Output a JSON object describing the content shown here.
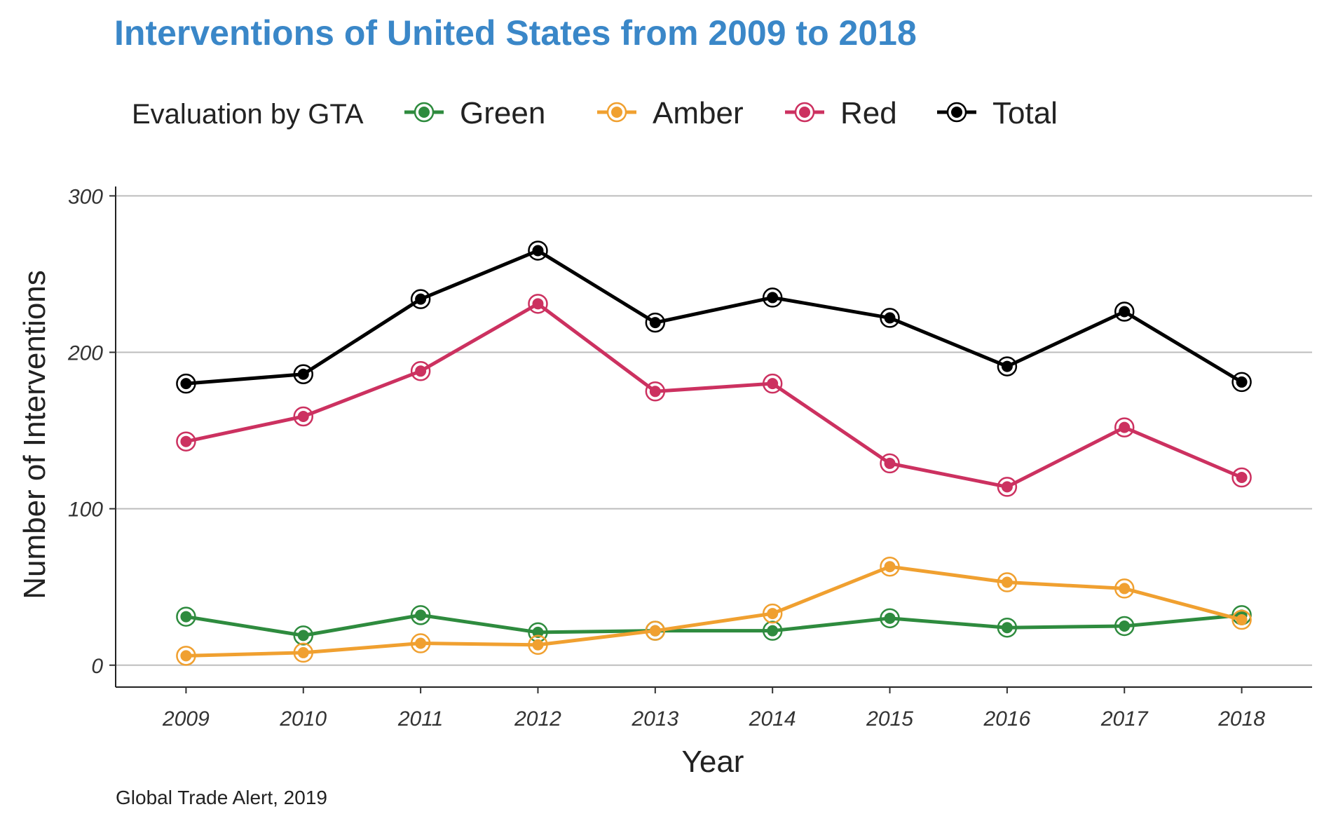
{
  "chart_data": {
    "type": "line",
    "title": "Interventions of United States from 2009 to 2018",
    "xlabel": "Year",
    "ylabel": "Number of Interventions",
    "caption": "Global Trade Alert, 2019",
    "legend_title": "Evaluation by GTA",
    "legend_position": "top",
    "grid": "horizontal major",
    "ylim": [
      -14,
      306
    ],
    "y_ticks": [
      0,
      100,
      200,
      300
    ],
    "x": [
      2009,
      2010,
      2011,
      2012,
      2013,
      2014,
      2015,
      2016,
      2017,
      2018
    ],
    "series": [
      {
        "name": "Green",
        "color": "#2e8b3e",
        "values": [
          31,
          19,
          32,
          21,
          22,
          22,
          30,
          24,
          25,
          32
        ]
      },
      {
        "name": "Amber",
        "color": "#f0a030",
        "values": [
          6,
          8,
          14,
          13,
          22,
          33,
          63,
          53,
          49,
          29
        ]
      },
      {
        "name": "Red",
        "color": "#cc3160",
        "values": [
          143,
          159,
          188,
          231,
          175,
          180,
          129,
          114,
          152,
          120
        ]
      },
      {
        "name": "Total",
        "color": "#000000",
        "values": [
          180,
          186,
          234,
          265,
          219,
          235,
          222,
          191,
          226,
          181
        ]
      }
    ]
  }
}
